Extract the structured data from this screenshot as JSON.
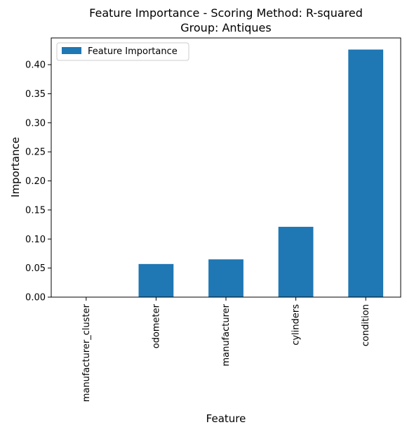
{
  "chart_data": {
    "type": "bar",
    "title": "Feature Importance - Scoring Method: R-squared",
    "subtitle": "Group: Antiques",
    "xlabel": "Feature",
    "ylabel": "Importance",
    "categories": [
      "manufacturer_cluster",
      "odometer",
      "manufacturer",
      "cylinders",
      "condition"
    ],
    "series": [
      {
        "name": "Feature Importance",
        "values": [
          0.0,
          0.057,
          0.065,
          0.121,
          0.426
        ],
        "color": "#1f77b4"
      }
    ],
    "ylim": [
      0,
      0.446
    ],
    "yticks": [
      0.0,
      0.05,
      0.1,
      0.15,
      0.2,
      0.25,
      0.3,
      0.35,
      0.4
    ],
    "ytick_labels": [
      "0.00",
      "0.05",
      "0.10",
      "0.15",
      "0.20",
      "0.25",
      "0.30",
      "0.35",
      "0.40"
    ],
    "grid": false,
    "legend_position": "top-left"
  }
}
